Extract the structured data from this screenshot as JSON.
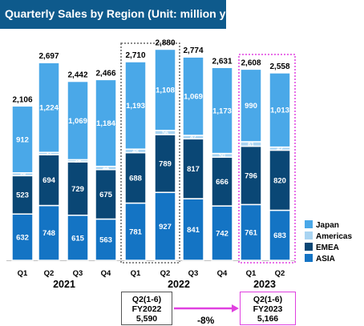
{
  "title": "Quarterly Sales by Region (Unit: million yen)",
  "colors": {
    "title_bar": "#0e5a8c",
    "japan": "#4aa8e8",
    "americas": "#a9d4f2",
    "emea": "#0a4775",
    "asia": "#1474c4",
    "highlight_2023": "#e040e0",
    "highlight_2022": "#666666"
  },
  "chart_data": {
    "type": "bar",
    "stacked": true,
    "title": "Quarterly Sales by Region (Unit: million yen)",
    "categories": [
      "Q1",
      "Q2",
      "Q3",
      "Q4",
      "Q1",
      "Q2",
      "Q3",
      "Q4",
      "Q1",
      "Q2"
    ],
    "years": [
      {
        "label": "2021",
        "quarters": [
          "Q1",
          "Q2",
          "Q3",
          "Q4"
        ]
      },
      {
        "label": "2022",
        "quarters": [
          "Q1",
          "Q2",
          "Q3",
          "Q4"
        ]
      },
      {
        "label": "2023",
        "quarters": [
          "Q1",
          "Q2"
        ]
      }
    ],
    "series": [
      {
        "name": "ASIA",
        "values": [
          632,
          748,
          615,
          563,
          781,
          927,
          841,
          742,
          761,
          683
        ]
      },
      {
        "name": "EMEA",
        "values": [
          523,
          694,
          729,
          675,
          688,
          789,
          817,
          666,
          796,
          820
        ]
      },
      {
        "name": "Americas",
        "values": [
          39,
          31,
          29,
          44,
          48,
          56,
          47,
          50,
          61,
          42
        ]
      },
      {
        "name": "Japan",
        "values": [
          912,
          1224,
          1069,
          1184,
          1193,
          1108,
          1069,
          1173,
          990,
          1013
        ]
      }
    ],
    "series_labels_shown": [
      [
        "632",
        "748",
        "615",
        "563",
        "781",
        "927",
        "841",
        "742",
        "761",
        "683"
      ],
      [
        "523",
        "694",
        "729",
        "675",
        "688",
        "789",
        "817",
        "666",
        "796",
        "820"
      ],
      [
        "39",
        "31",
        "29",
        "44",
        "48",
        "56",
        "47",
        "50",
        "61",
        "42"
      ],
      [
        "912",
        "1,224",
        "1,069",
        "1,184",
        "1,193",
        "1,108",
        "1,069",
        "1,173",
        "990",
        "1,013"
      ]
    ],
    "totals": [
      "2,106",
      "2,697",
      "2,442",
      "2,466",
      "2,710",
      "2,880",
      "2,774",
      "2,631",
      "2,608",
      "2,558"
    ],
    "legend": [
      "Japan",
      "Americas",
      "EMEA",
      "ASIA"
    ],
    "legend_position": "right"
  },
  "comparison": {
    "prior": {
      "line1": "Q2(1-6)",
      "line2": "FY2022",
      "line3": "5,590"
    },
    "current": {
      "line1": "Q2(1-6)",
      "line2": "FY2023",
      "line3": "5,166"
    },
    "change": "-8%"
  }
}
